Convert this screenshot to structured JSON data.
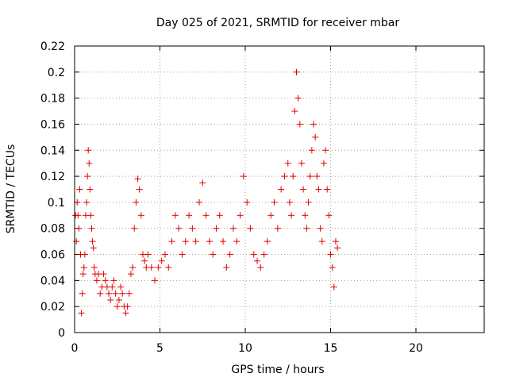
{
  "chart_data": {
    "type": "scatter",
    "title": "Day 025 of 2021, SRMTID for receiver mbar",
    "xlabel": "GPS time / hours",
    "ylabel": "SRMTID / TECUs",
    "xlim": [
      0,
      24
    ],
    "ylim": [
      0,
      0.22
    ],
    "xticks": [
      0,
      5,
      10,
      15,
      20
    ],
    "xtick_labels": [
      "0",
      "5",
      "10",
      "15",
      "20"
    ],
    "yticks": [
      0,
      0.02,
      0.04,
      0.06,
      0.08,
      0.1,
      0.12,
      0.14,
      0.16,
      0.18,
      0.2,
      0.22
    ],
    "ytick_labels": [
      "0",
      "0.02",
      "0.04",
      "0.06",
      "0.08",
      "0.1",
      "0.12",
      "0.14",
      "0.16",
      "0.18",
      "0.2",
      "0.22"
    ],
    "grid": true,
    "marker": "+",
    "marker_color": "#e00000",
    "series": [
      {
        "name": "SRMTID",
        "x": [
          0.05,
          0.1,
          0.15,
          0.2,
          0.25,
          0.3,
          0.35,
          0.4,
          0.45,
          0.5,
          0.55,
          0.6,
          0.65,
          0.7,
          0.75,
          0.8,
          0.85,
          0.9,
          0.95,
          1.0,
          1.05,
          1.1,
          1.15,
          1.2,
          1.3,
          1.4,
          1.5,
          1.6,
          1.7,
          1.8,
          1.9,
          2.0,
          2.1,
          2.2,
          2.3,
          2.4,
          2.5,
          2.6,
          2.7,
          2.8,
          2.9,
          3.0,
          3.1,
          3.2,
          3.3,
          3.4,
          3.5,
          3.6,
          3.7,
          3.8,
          3.9,
          4.0,
          4.1,
          4.2,
          4.3,
          4.5,
          4.7,
          4.9,
          5.1,
          5.3,
          5.5,
          5.7,
          5.9,
          6.1,
          6.3,
          6.5,
          6.7,
          6.9,
          7.1,
          7.3,
          7.5,
          7.7,
          7.9,
          8.1,
          8.3,
          8.5,
          8.7,
          8.9,
          9.1,
          9.3,
          9.5,
          9.7,
          9.9,
          10.1,
          10.3,
          10.5,
          10.7,
          10.9,
          11.1,
          11.3,
          11.5,
          11.7,
          11.9,
          12.1,
          12.3,
          12.5,
          12.6,
          12.7,
          12.8,
          12.9,
          13.0,
          13.1,
          13.2,
          13.3,
          13.4,
          13.5,
          13.6,
          13.7,
          13.8,
          13.9,
          14.0,
          14.1,
          14.2,
          14.3,
          14.4,
          14.5,
          14.6,
          14.7,
          14.8,
          14.9,
          15.0,
          15.1,
          15.2,
          15.3,
          15.4
        ],
        "y": [
          0.09,
          0.07,
          0.1,
          0.09,
          0.08,
          0.11,
          0.06,
          0.015,
          0.03,
          0.045,
          0.05,
          0.06,
          0.09,
          0.1,
          0.12,
          0.14,
          0.13,
          0.11,
          0.09,
          0.08,
          0.07,
          0.065,
          0.05,
          0.045,
          0.04,
          0.045,
          0.03,
          0.035,
          0.045,
          0.04,
          0.035,
          0.03,
          0.025,
          0.035,
          0.04,
          0.03,
          0.02,
          0.025,
          0.035,
          0.03,
          0.02,
          0.015,
          0.02,
          0.03,
          0.045,
          0.05,
          0.08,
          0.1,
          0.118,
          0.11,
          0.09,
          0.06,
          0.055,
          0.05,
          0.06,
          0.05,
          0.04,
          0.05,
          0.055,
          0.06,
          0.05,
          0.07,
          0.09,
          0.08,
          0.06,
          0.07,
          0.09,
          0.08,
          0.07,
          0.1,
          0.115,
          0.09,
          0.07,
          0.06,
          0.08,
          0.09,
          0.07,
          0.05,
          0.06,
          0.08,
          0.07,
          0.09,
          0.12,
          0.1,
          0.08,
          0.06,
          0.055,
          0.05,
          0.06,
          0.07,
          0.09,
          0.1,
          0.08,
          0.11,
          0.12,
          0.13,
          0.1,
          0.09,
          0.12,
          0.17,
          0.2,
          0.18,
          0.16,
          0.13,
          0.11,
          0.09,
          0.08,
          0.1,
          0.12,
          0.14,
          0.16,
          0.15,
          0.12,
          0.11,
          0.08,
          0.07,
          0.13,
          0.14,
          0.11,
          0.09,
          0.06,
          0.05,
          0.035,
          0.07,
          0.065
        ]
      }
    ]
  }
}
